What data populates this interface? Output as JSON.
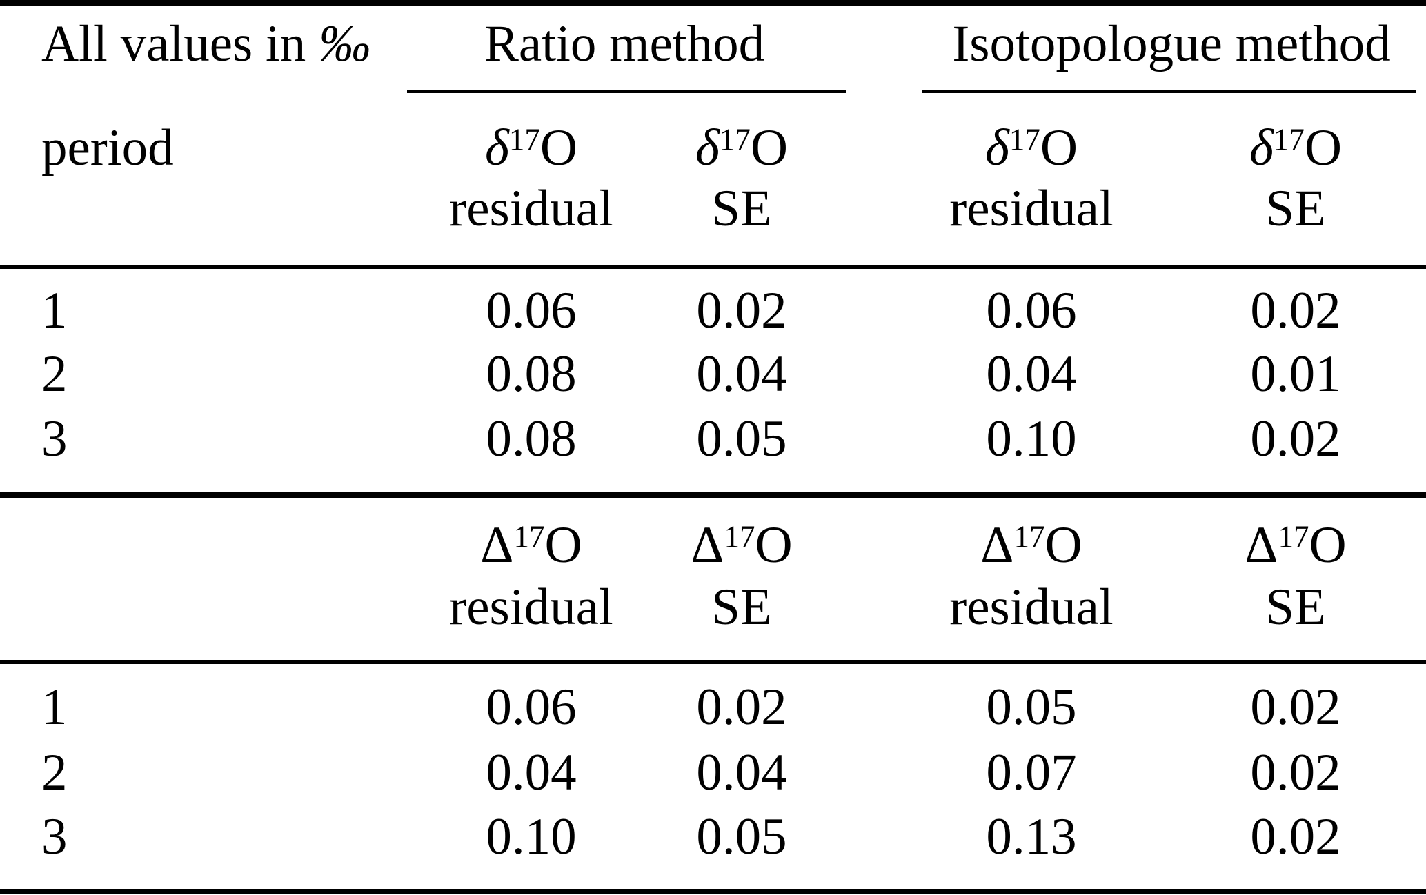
{
  "table": {
    "unit_note_prefix": "All values in ",
    "unit_note_symbol": "‰",
    "row_label_header": "period",
    "group_headers": {
      "ratio": "Ratio method",
      "isotopologue": "Isotopologue method"
    },
    "sections": [
      {
        "quantity": {
          "symbol": "δ",
          "superscript": "17",
          "element": "O"
        },
        "column_labels": [
          "residual",
          "SE",
          "residual",
          "SE"
        ],
        "rows": [
          {
            "period": "1",
            "values": [
              "0.06",
              "0.02",
              "0.06",
              "0.02"
            ]
          },
          {
            "period": "2",
            "values": [
              "0.08",
              "0.04",
              "0.04",
              "0.01"
            ]
          },
          {
            "period": "3",
            "values": [
              "0.08",
              "0.05",
              "0.10",
              "0.02"
            ]
          }
        ]
      },
      {
        "quantity": {
          "symbol": "Δ",
          "superscript": "17",
          "element": "O"
        },
        "column_labels": [
          "residual",
          "SE",
          "residual",
          "SE"
        ],
        "rows": [
          {
            "period": "1",
            "values": [
              "0.06",
              "0.02",
              "0.05",
              "0.02"
            ]
          },
          {
            "period": "2",
            "values": [
              "0.04",
              "0.04",
              "0.07",
              "0.02"
            ]
          },
          {
            "period": "3",
            "values": [
              "0.10",
              "0.05",
              "0.13",
              "0.02"
            ]
          }
        ]
      }
    ],
    "colors": {
      "text": "#000000",
      "background": "#ffffff",
      "rule": "#000000"
    }
  }
}
